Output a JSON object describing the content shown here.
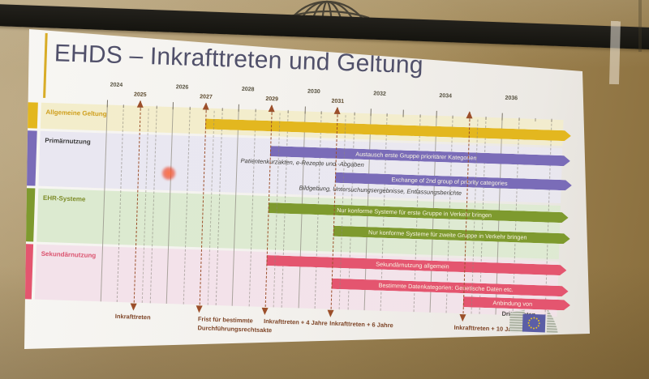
{
  "slide": {
    "title": "EHDS – Inkrafttreten und Geltung"
  },
  "chart_data": {
    "type": "bar",
    "subtype": "gantt-timeline",
    "title": "EHDS – Inkrafttreten und Geltung",
    "axis": {
      "min": 2024,
      "max": 2036,
      "top_row_year_labels": [
        2024,
        2026,
        2028,
        2030,
        2032,
        2034,
        2036
      ],
      "bottom_row_year_labels": [
        2025,
        2027,
        2029,
        2031
      ],
      "grid": "solid lines at even years, dashed lines at half years"
    },
    "rows": [
      {
        "label": "Allgemeine Geltung",
        "color": "#e3b71f",
        "band_color": "#f3edcb",
        "label_color": "#cf9f1c",
        "bars": [
          {
            "text": "",
            "start": 2027,
            "open_ended": true
          }
        ]
      },
      {
        "label": "Primärnutzung",
        "color": "#7a6cb8",
        "band_color": "#e9e7f1",
        "label_color": "#3c3c3c",
        "bars": [
          {
            "text": "Austausch erste Gruppe prioritärer Kategorien",
            "start": 2029,
            "open_ended": true,
            "subtext": "Patientenkurzakten, e-Rezepte und -Abgaben"
          },
          {
            "text": "Exchange of 2nd group of priority categories",
            "start": 2031,
            "open_ended": true,
            "subtext": "Bildgebung, Untersuchungsergebnisse, Entlassungsberichte"
          }
        ]
      },
      {
        "label": "EHR-Systeme",
        "color": "#7e9a2e",
        "band_color": "#dcead0",
        "label_color": "#7d8c28",
        "bars": [
          {
            "text": "Nur konforme Systeme für erste Gruppe in Verkehr bringen",
            "start": 2029,
            "open_ended": true
          },
          {
            "text": "Nur konforme Systeme für zweite Gruppe in Verkehr bringen",
            "start": 2031,
            "open_ended": true
          }
        ]
      },
      {
        "label": "Sekundärnutzung",
        "color": "#e4556f",
        "band_color": "#f3e2ea",
        "label_color": "#db5470",
        "bars": [
          {
            "text": "Sekundärnutzung allgemein",
            "start": 2029,
            "open_ended": true
          },
          {
            "text": "Bestimmte Datenkategorien: Genetische Daten etc.",
            "start": 2031,
            "open_ended": true
          },
          {
            "text": "Anbindung von",
            "start": 2035,
            "open_ended": true,
            "subtext_below": "Drittstaaten"
          }
        ]
      }
    ],
    "milestones": [
      {
        "year": 2025,
        "lines": [
          "Inkrafttreten"
        ],
        "align": "center"
      },
      {
        "year": 2027,
        "lines": [
          "Frist für bestimmte",
          "Durchführungsrechtsakte"
        ],
        "align": "left"
      },
      {
        "year": 2029,
        "lines": [
          "Inkrafttreten + 4 Jahre"
        ],
        "align": "left"
      },
      {
        "year": 2031,
        "lines": [
          "Inkrafttreten + 6 Jahre"
        ],
        "align": "left"
      },
      {
        "year": 2035,
        "lines": [
          "Inkrafttreten + 10 Jahre"
        ],
        "align": "left"
      }
    ],
    "milestone_arrow_color": "#9c4f2a",
    "footer_logo": "european-commission-logo"
  }
}
